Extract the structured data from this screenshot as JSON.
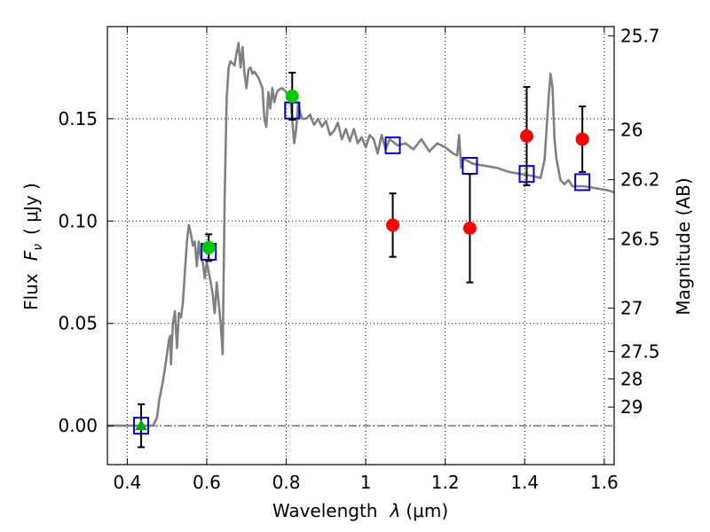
{
  "chart_data": {
    "type": "scatter",
    "xlabel_prefix": "Wavelength",
    "xlabel_symbol": "λ",
    "xlabel_unit": "(μm)",
    "ylabel_prefix": "Flux",
    "ylabel_symbol": "F",
    "ylabel_sub": "ν",
    "ylabel_unit": "( μJy )",
    "y2label": "Magnitude (AB)",
    "xlim": [
      0.35,
      1.625
    ],
    "ylim": [
      -0.019,
      0.195
    ],
    "xticks": [
      0.4,
      0.6,
      0.8,
      1.0,
      1.2,
      1.4,
      1.6
    ],
    "xtick_labels": [
      "0.4",
      "0.6",
      "0.8",
      "1",
      "1.2",
      "1.4",
      "1.6"
    ],
    "yticks": [
      0.0,
      0.05,
      0.1,
      0.15
    ],
    "ytick_labels": [
      "0.00",
      "0.05",
      "0.10",
      "0.15"
    ],
    "magnitude_ticks": [
      {
        "label": "25.7",
        "flux": 0.1905
      },
      {
        "label": "26",
        "flux": 0.1445
      },
      {
        "label": "26.2",
        "flux": 0.1202
      },
      {
        "label": "26.5",
        "flux": 0.0912
      },
      {
        "label": "27",
        "flux": 0.0575
      },
      {
        "label": "27.5",
        "flux": 0.0363
      },
      {
        "label": "28",
        "flux": 0.0229
      },
      {
        "label": "29",
        "flux": 0.0091
      }
    ],
    "grid": true,
    "zero_line": true,
    "series": [
      {
        "name": "model SED",
        "style": "line",
        "color": "#808080",
        "x": [
          0.35,
          0.465,
          0.475,
          0.48,
          0.49,
          0.5,
          0.505,
          0.508,
          0.51,
          0.512,
          0.515,
          0.52,
          0.525,
          0.53,
          0.535,
          0.54,
          0.545,
          0.55,
          0.555,
          0.56,
          0.565,
          0.57,
          0.575,
          0.58,
          0.585,
          0.59,
          0.595,
          0.6,
          0.605,
          0.61,
          0.615,
          0.62,
          0.625,
          0.63,
          0.635,
          0.64,
          0.645,
          0.65,
          0.655,
          0.66,
          0.665,
          0.67,
          0.675,
          0.68,
          0.685,
          0.69,
          0.695,
          0.7,
          0.705,
          0.71,
          0.715,
          0.72,
          0.73,
          0.74,
          0.745,
          0.75,
          0.755,
          0.76,
          0.765,
          0.77,
          0.775,
          0.78,
          0.79,
          0.8,
          0.81,
          0.815,
          0.82,
          0.825,
          0.83,
          0.835,
          0.84,
          0.85,
          0.86,
          0.87,
          0.88,
          0.89,
          0.9,
          0.91,
          0.92,
          0.93,
          0.94,
          0.95,
          0.96,
          0.97,
          0.98,
          0.99,
          1.0,
          1.01,
          1.02,
          1.03,
          1.04,
          1.05,
          1.06,
          1.08,
          1.1,
          1.12,
          1.14,
          1.16,
          1.18,
          1.2,
          1.22,
          1.23,
          1.235,
          1.24,
          1.245,
          1.25,
          1.27,
          1.3,
          1.33,
          1.36,
          1.39,
          1.42,
          1.44,
          1.45,
          1.46,
          1.465,
          1.47,
          1.475,
          1.48,
          1.49,
          1.5,
          1.51,
          1.52,
          1.55,
          1.58,
          1.61,
          1.625
        ],
        "y": [
          0.0,
          0.0,
          0.004,
          0.012,
          0.022,
          0.035,
          0.042,
          0.044,
          0.03,
          0.04,
          0.05,
          0.056,
          0.038,
          0.055,
          0.053,
          0.06,
          0.075,
          0.09,
          0.098,
          0.094,
          0.088,
          0.09,
          0.078,
          0.09,
          0.082,
          0.08,
          0.072,
          0.08,
          0.075,
          0.07,
          0.064,
          0.055,
          0.07,
          0.06,
          0.05,
          0.035,
          0.11,
          0.16,
          0.175,
          0.178,
          0.177,
          0.176,
          0.182,
          0.187,
          0.175,
          0.185,
          0.172,
          0.165,
          0.174,
          0.175,
          0.172,
          0.173,
          0.17,
          0.165,
          0.15,
          0.146,
          0.163,
          0.155,
          0.165,
          0.158,
          0.162,
          0.164,
          0.165,
          0.163,
          0.16,
          0.15,
          0.138,
          0.145,
          0.158,
          0.153,
          0.15,
          0.15,
          0.152,
          0.147,
          0.15,
          0.146,
          0.149,
          0.142,
          0.144,
          0.148,
          0.14,
          0.145,
          0.139,
          0.145,
          0.138,
          0.141,
          0.136,
          0.142,
          0.14,
          0.133,
          0.142,
          0.135,
          0.14,
          0.137,
          0.138,
          0.135,
          0.14,
          0.134,
          0.138,
          0.136,
          0.133,
          0.132,
          0.142,
          0.126,
          0.13,
          0.13,
          0.128,
          0.127,
          0.126,
          0.124,
          0.123,
          0.122,
          0.121,
          0.13,
          0.16,
          0.172,
          0.165,
          0.14,
          0.13,
          0.12,
          0.118,
          0.12,
          0.117,
          0.117,
          0.116,
          0.115,
          0.114
        ]
      },
      {
        "name": "model photometry",
        "style": "open-square",
        "color": "#0000cc",
        "x": [
          0.435,
          0.605,
          0.815,
          1.068,
          1.262,
          1.405,
          1.545
        ],
        "y": [
          0.0,
          0.085,
          0.154,
          0.137,
          0.127,
          0.123,
          0.119
        ]
      },
      {
        "name": "detections",
        "style": "filled-circle",
        "color": "#00cc00",
        "x": [
          0.605,
          0.815
        ],
        "y": [
          0.087,
          0.161
        ],
        "yerr": [
          0.0065,
          0.0115
        ]
      },
      {
        "name": "detection (triangle)",
        "style": "filled-triangle",
        "color": "#00aa00",
        "x": [
          0.435
        ],
        "y": [
          0.0
        ],
        "yerr": [
          0.0105
        ]
      },
      {
        "name": "near-IR measurements",
        "style": "filled-circle",
        "color": "#ff0000",
        "x": [
          1.068,
          1.262,
          1.405,
          1.545
        ],
        "y": [
          0.098,
          0.0965,
          0.1415,
          0.14
        ],
        "yerr": [
          0.0155,
          0.0265,
          0.024,
          0.016
        ]
      }
    ]
  }
}
